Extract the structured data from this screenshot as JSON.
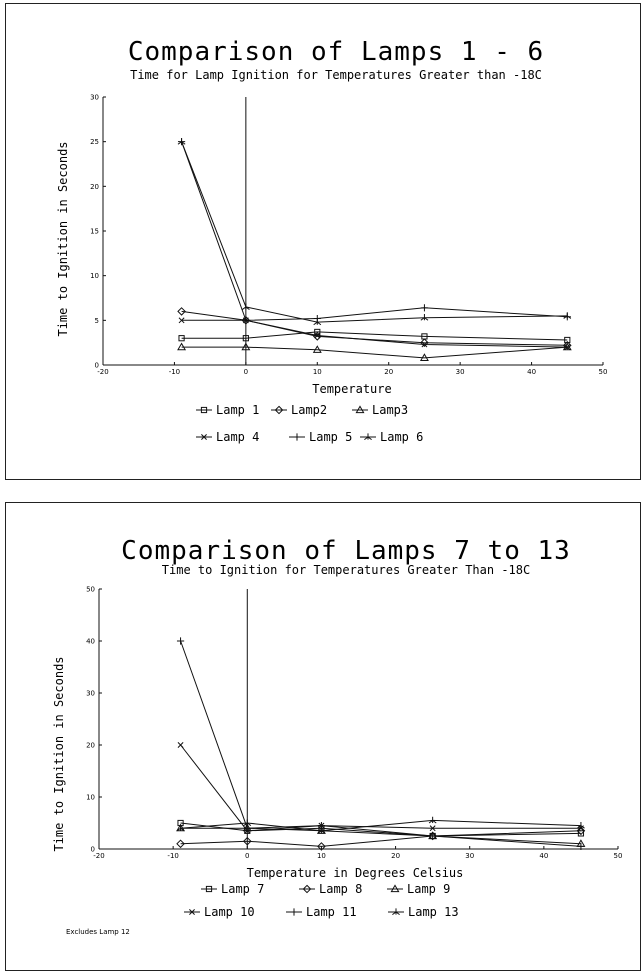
{
  "chart_data": [
    {
      "type": "line",
      "title": "Comparison of Lamps 1 - 6",
      "subtitle": "Time for Lamp Ignition for Temperatures Greater than -18C",
      "xlabel": "Temperature",
      "ylabel": "Time to Ignition in Seconds",
      "xlim": [
        -20,
        50
      ],
      "ylim": [
        0,
        30
      ],
      "xticks": [
        -20,
        -10,
        0,
        10,
        20,
        30,
        40,
        50
      ],
      "yticks": [
        0,
        5,
        10,
        15,
        20,
        25,
        30
      ],
      "x": [
        -9,
        0,
        10,
        25,
        45
      ],
      "grid": false,
      "legend_position": "bottom",
      "legend_rows": [
        [
          0,
          1,
          2
        ],
        [
          3,
          4,
          5
        ]
      ],
      "series": [
        {
          "name": "Lamp 1",
          "marker": "square",
          "values": [
            3,
            3,
            3.7,
            3.2,
            2.8
          ]
        },
        {
          "name": "Lamp2",
          "marker": "diamond",
          "values": [
            6,
            5,
            3.2,
            2.5,
            2.2
          ]
        },
        {
          "name": "Lamp3",
          "marker": "triangle",
          "values": [
            2,
            2,
            1.7,
            0.8,
            2
          ]
        },
        {
          "name": "Lamp 4",
          "marker": "x",
          "values": [
            5,
            5,
            3.3,
            2.3,
            2
          ]
        },
        {
          "name": "Lamp 5",
          "marker": "plus",
          "values": [
            25,
            5,
            5.2,
            6.4,
            5.4
          ]
        },
        {
          "name": "Lamp 6",
          "marker": "star",
          "values": [
            25,
            6.5,
            4.8,
            5.3,
            5.5
          ]
        }
      ]
    },
    {
      "type": "line",
      "title": "Comparison of Lamps 7 to 13",
      "subtitle": "Time to Ignition for Temperatures Greater Than -18C",
      "xlabel": "Temperature in Degrees Celsius",
      "ylabel": "Time to Ignition in Seconds",
      "xlim": [
        -20,
        50
      ],
      "ylim": [
        0,
        50
      ],
      "xticks": [
        -20,
        -10,
        0,
        10,
        20,
        30,
        40,
        50
      ],
      "yticks": [
        0,
        10,
        20,
        30,
        40,
        50
      ],
      "x": [
        -9,
        0,
        10,
        25,
        45
      ],
      "grid": false,
      "legend_position": "bottom",
      "legend_rows": [
        [
          0,
          1,
          2
        ],
        [
          3,
          4,
          5
        ]
      ],
      "footnote": "Excludes Lamp 12",
      "series": [
        {
          "name": "Lamp 7",
          "marker": "square",
          "values": [
            5,
            3.5,
            4,
            2.5,
            3
          ]
        },
        {
          "name": "Lamp 8",
          "marker": "diamond",
          "values": [
            1,
            1.5,
            0.5,
            2.5,
            3.5
          ]
        },
        {
          "name": "Lamp 9",
          "marker": "triangle",
          "values": [
            4,
            4,
            3.5,
            2.5,
            1
          ]
        },
        {
          "name": "Lamp 10",
          "marker": "x",
          "values": [
            20,
            3.5,
            4.5,
            4,
            4
          ]
        },
        {
          "name": "Lamp 11",
          "marker": "plus",
          "values": [
            40,
            4,
            4.5,
            2.5,
            0.5
          ]
        },
        {
          "name": "Lamp 13",
          "marker": "star",
          "values": [
            4,
            5,
            3.5,
            5.5,
            4.5
          ]
        }
      ]
    }
  ]
}
